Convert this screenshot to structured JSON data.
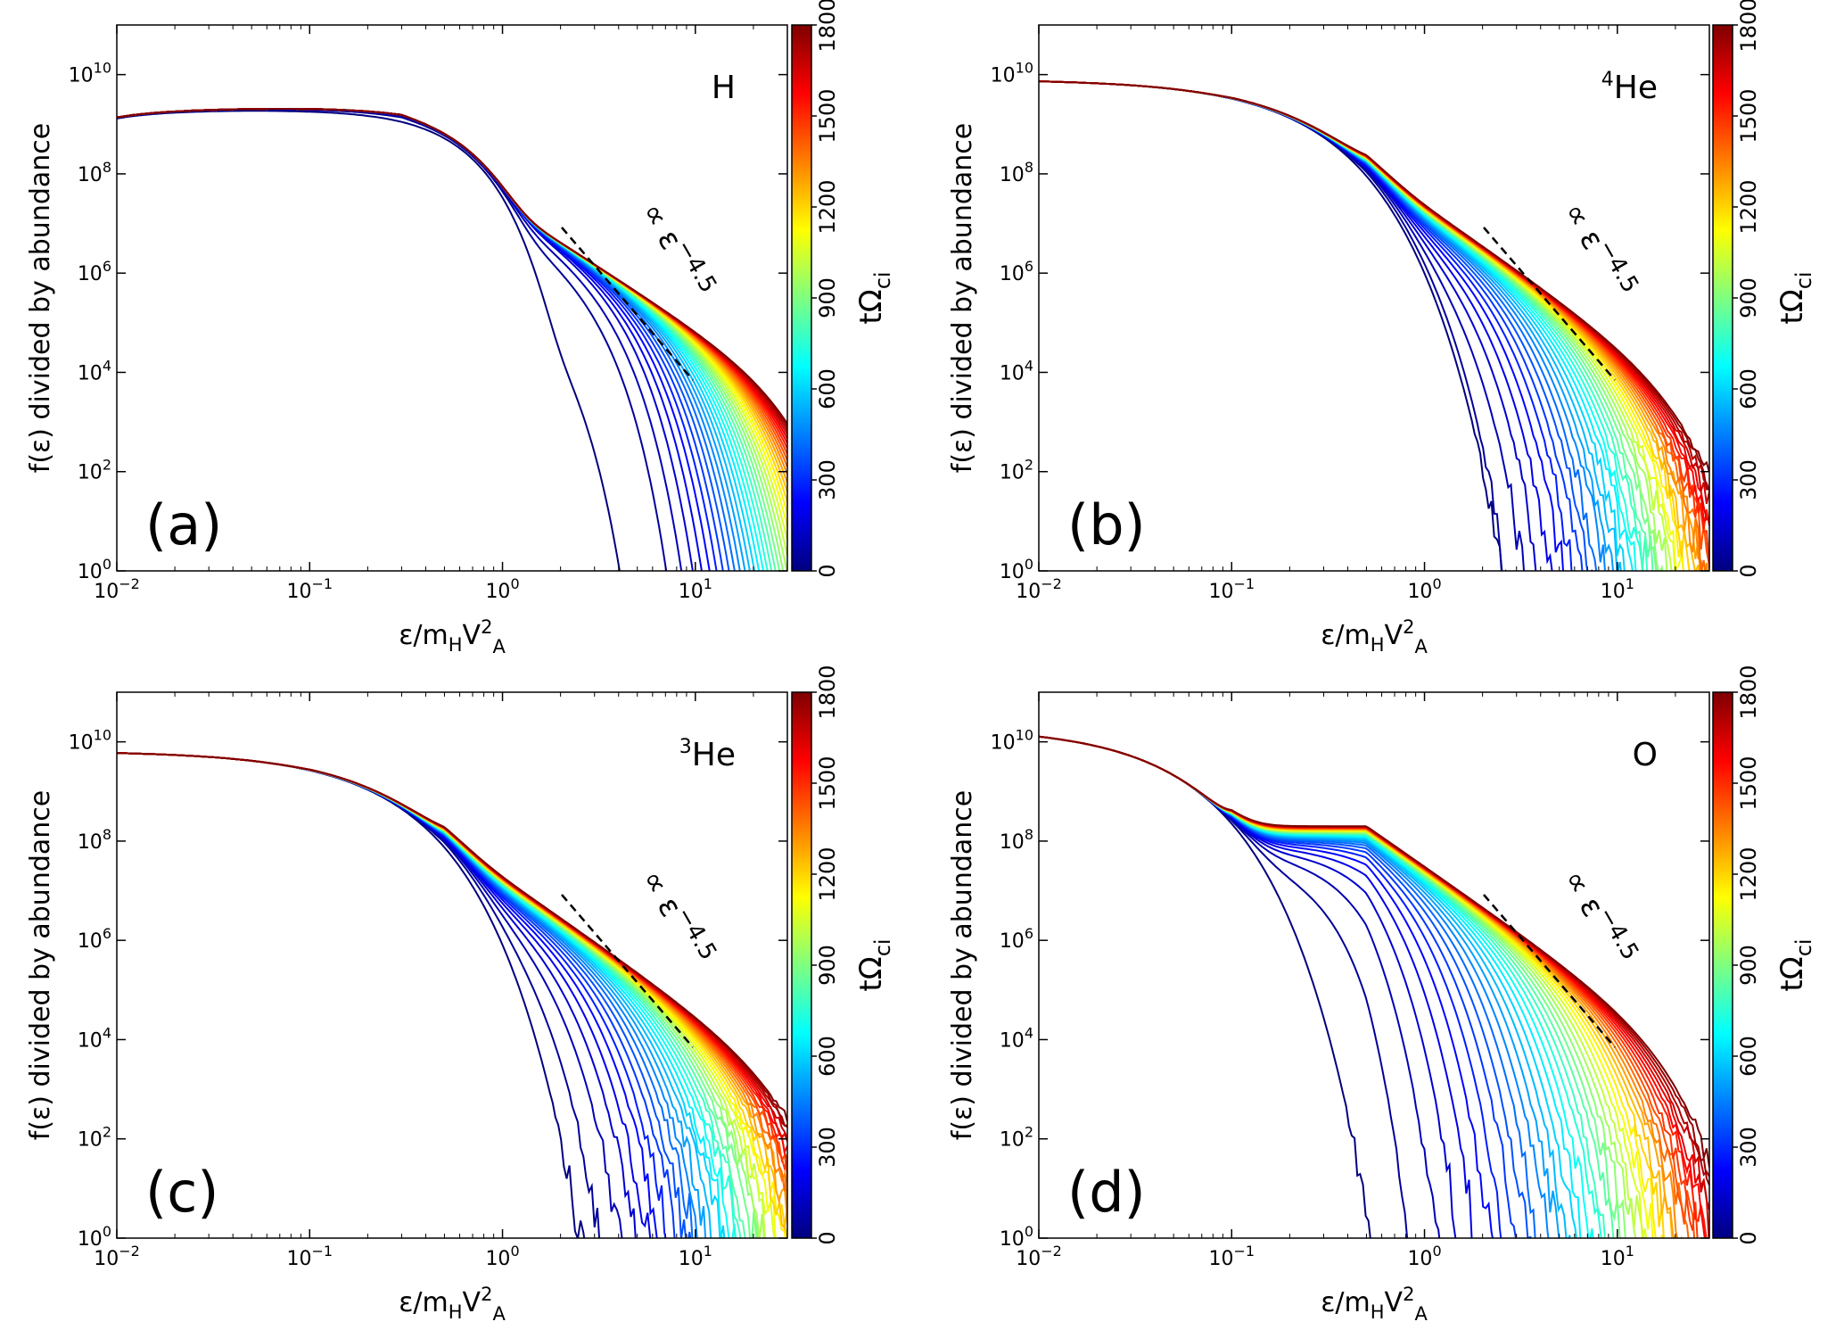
{
  "figure": {
    "colorbar_label": "tΩci",
    "colorbar_ticks": [
      "0",
      "300",
      "600",
      "900",
      "1200",
      "1500",
      "1800"
    ],
    "colorbar_range": [
      0,
      1800
    ],
    "colormap": [
      "#00007f",
      "#0000ff",
      "#007fff",
      "#00ffff",
      "#7fff7f",
      "#ffff00",
      "#ff7f00",
      "#ff0000",
      "#7f0000"
    ],
    "slope_annotation": "∝ ε−4.5"
  },
  "chart_data": [
    {
      "type": "line",
      "panel": "(a)",
      "species": "H",
      "title": "",
      "xlabel": "ε/mHV2A",
      "ylabel": "f(ε) divided by abundance",
      "xscale": "log",
      "yscale": "log",
      "xlim": [
        0.01,
        30
      ],
      "ylim": [
        1,
        100000000000.0
      ],
      "x_tick_labels": [
        "10−2",
        "10−1",
        "100",
        "101"
      ],
      "y_tick_labels": [
        "100",
        "102",
        "104",
        "106",
        "108",
        "1010"
      ],
      "curves": {
        "count": 40,
        "t_range": [
          0,
          1800
        ],
        "y_low_energy": 2000000000.0,
        "knee_energy": 0.3,
        "cutoff_energy_initial": 2.5,
        "cutoff_energy_final": 23,
        "plateau_level": 0,
        "late_start": 0.04,
        "noise": false
      },
      "power_law_index": -4.5
    },
    {
      "type": "line",
      "panel": "(b)",
      "species": "4He",
      "title": "",
      "xlabel": "ε/mHV2A",
      "ylabel": "f(ε) divided by abundance",
      "xscale": "log",
      "yscale": "log",
      "xlim": [
        0.01,
        30
      ],
      "ylim": [
        1,
        100000000000.0
      ],
      "x_tick_labels": [
        "10−2",
        "10−1",
        "100",
        "101"
      ],
      "y_tick_labels": [
        "100",
        "102",
        "104",
        "106",
        "108",
        "1010"
      ],
      "curves": {
        "count": 40,
        "t_range": [
          0,
          1800
        ],
        "y_low_energy": 8000000000.0,
        "knee_energy": 0.1,
        "cutoff_energy_initial": 0.55,
        "cutoff_energy_final": 15,
        "plateau_level": 150000000.0,
        "late_start": 0.1,
        "noise": true
      },
      "power_law_index": -4.5
    },
    {
      "type": "line",
      "panel": "(c)",
      "species": "3He",
      "title": "",
      "xlabel": "ε/mHV2A",
      "ylabel": "f(ε) divided by abundance",
      "xscale": "log",
      "yscale": "log",
      "xlim": [
        0.01,
        30
      ],
      "ylim": [
        1,
        100000000000.0
      ],
      "x_tick_labels": [
        "10−2",
        "10−1",
        "100",
        "101"
      ],
      "y_tick_labels": [
        "100",
        "102",
        "104",
        "106",
        "108",
        "1010"
      ],
      "curves": {
        "count": 40,
        "t_range": [
          0,
          1800
        ],
        "y_low_energy": 6500000000.0,
        "knee_energy": 0.1,
        "cutoff_energy_initial": 0.7,
        "cutoff_energy_final": 20,
        "plateau_level": 120000000.0,
        "late_start": 0.1,
        "noise": true
      },
      "power_law_index": -4.5
    },
    {
      "type": "line",
      "panel": "(d)",
      "species": "O",
      "title": "",
      "xlabel": "ε/mHV2A",
      "ylabel": "f(ε) divided by abundance",
      "xscale": "log",
      "yscale": "log",
      "xlim": [
        0.01,
        30
      ],
      "ylim": [
        1,
        100000000000.0
      ],
      "x_tick_labels": [
        "10−2",
        "10−1",
        "100",
        "101"
      ],
      "y_tick_labels": [
        "100",
        "102",
        "104",
        "106",
        "108",
        "1010"
      ],
      "curves": {
        "count": 40,
        "t_range": [
          0,
          1800
        ],
        "y_low_energy": 20000000000.0,
        "knee_energy": 0.02,
        "cutoff_energy_initial": 0.12,
        "cutoff_energy_final": 13,
        "plateau_level": 200000000.0,
        "late_start": 0.1,
        "noise": true
      },
      "power_law_index": -4.5
    }
  ]
}
